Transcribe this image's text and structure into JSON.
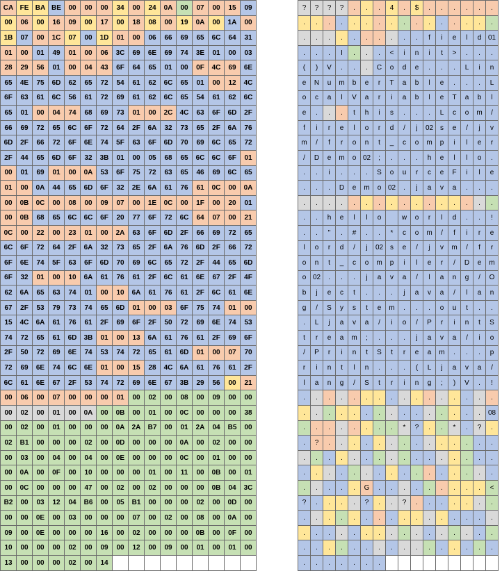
{
  "colors": {
    "o": "#f8cbad",
    "y": "#ffe699",
    "b": "#b4c6e7",
    "g": "#c6e0b4",
    "s": "#d9d9d9",
    "w": "#ffffff"
  },
  "hex_rows": [
    [
      "CA",
      "FE",
      "BA",
      "BE",
      "00",
      "00",
      "00",
      "34",
      "00",
      "24",
      "0A",
      "00",
      "07",
      "00",
      "15",
      "09"
    ],
    [
      "00",
      "06",
      "00",
      "16",
      "09",
      "00",
      "17",
      "00",
      "18",
      "08",
      "00",
      "19",
      "0A",
      "00",
      "1A",
      "00"
    ],
    [
      "1B",
      "07",
      "00",
      "1C",
      "07",
      "00",
      "1D",
      "01",
      "00",
      "06",
      "66",
      "69",
      "65",
      "6C",
      "64",
      "31"
    ],
    [
      "01",
      "00",
      "01",
      "49",
      "01",
      "00",
      "06",
      "3C",
      "69",
      "6E",
      "69",
      "74",
      "3E",
      "01",
      "00",
      "03"
    ],
    [
      "28",
      "29",
      "56",
      "01",
      "00",
      "04",
      "43",
      "6F",
      "64",
      "65",
      "01",
      "00",
      "0F",
      "4C",
      "69",
      "6E"
    ],
    [
      "65",
      "4E",
      "75",
      "6D",
      "62",
      "65",
      "72",
      "54",
      "61",
      "62",
      "6C",
      "65",
      "01",
      "00",
      "12",
      "4C"
    ],
    [
      "6F",
      "63",
      "61",
      "6C",
      "56",
      "61",
      "72",
      "69",
      "61",
      "62",
      "6C",
      "65",
      "54",
      "61",
      "62",
      "6C"
    ],
    [
      "65",
      "01",
      "00",
      "04",
      "74",
      "68",
      "69",
      "73",
      "01",
      "00",
      "2C",
      "4C",
      "63",
      "6F",
      "6D",
      "2F"
    ],
    [
      "66",
      "69",
      "72",
      "65",
      "6C",
      "6F",
      "72",
      "64",
      "2F",
      "6A",
      "32",
      "73",
      "65",
      "2F",
      "6A",
      "76"
    ],
    [
      "6D",
      "2F",
      "66",
      "72",
      "6F",
      "6E",
      "74",
      "5F",
      "63",
      "6F",
      "6D",
      "70",
      "69",
      "6C",
      "65",
      "72"
    ],
    [
      "2F",
      "44",
      "65",
      "6D",
      "6F",
      "32",
      "3B",
      "01",
      "00",
      "05",
      "68",
      "65",
      "6C",
      "6C",
      "6F",
      "01"
    ],
    [
      "00",
      "01",
      "69",
      "01",
      "00",
      "0A",
      "53",
      "6F",
      "75",
      "72",
      "63",
      "65",
      "46",
      "69",
      "6C",
      "65"
    ],
    [
      "01",
      "00",
      "0A",
      "44",
      "65",
      "6D",
      "6F",
      "32",
      "2E",
      "6A",
      "61",
      "76",
      "61",
      "0C",
      "00",
      "0A"
    ],
    [
      "00",
      "0B",
      "0C",
      "00",
      "08",
      "00",
      "09",
      "07",
      "00",
      "1E",
      "0C",
      "00",
      "1F",
      "00",
      "20",
      "01"
    ],
    [
      "00",
      "0B",
      "68",
      "65",
      "6C",
      "6C",
      "6F",
      "20",
      "77",
      "6F",
      "72",
      "6C",
      "64",
      "07",
      "00",
      "21"
    ],
    [
      "0C",
      "00",
      "22",
      "00",
      "23",
      "01",
      "00",
      "2A",
      "63",
      "6F",
      "6D",
      "2F",
      "66",
      "69",
      "72",
      "65"
    ],
    [
      "6C",
      "6F",
      "72",
      "64",
      "2F",
      "6A",
      "32",
      "73",
      "65",
      "2F",
      "6A",
      "76",
      "6D",
      "2F",
      "66",
      "72"
    ],
    [
      "6F",
      "6E",
      "74",
      "5F",
      "63",
      "6F",
      "6D",
      "70",
      "69",
      "6C",
      "65",
      "72",
      "2F",
      "44",
      "65",
      "6D"
    ],
    [
      "6F",
      "32",
      "01",
      "00",
      "10",
      "6A",
      "61",
      "76",
      "61",
      "2F",
      "6C",
      "61",
      "6E",
      "67",
      "2F",
      "4F"
    ],
    [
      "62",
      "6A",
      "65",
      "63",
      "74",
      "01",
      "00",
      "10",
      "6A",
      "61",
      "76",
      "61",
      "2F",
      "6C",
      "61",
      "6E"
    ],
    [
      "67",
      "2F",
      "53",
      "79",
      "73",
      "74",
      "65",
      "6D",
      "01",
      "00",
      "03",
      "6F",
      "75",
      "74",
      "01",
      "00"
    ],
    [
      "15",
      "4C",
      "6A",
      "61",
      "76",
      "61",
      "2F",
      "69",
      "6F",
      "2F",
      "50",
      "72",
      "69",
      "6E",
      "74",
      "53"
    ],
    [
      "74",
      "72",
      "65",
      "61",
      "6D",
      "3B",
      "01",
      "00",
      "13",
      "6A",
      "61",
      "76",
      "61",
      "2F",
      "69",
      "6F"
    ],
    [
      "2F",
      "50",
      "72",
      "69",
      "6E",
      "74",
      "53",
      "74",
      "72",
      "65",
      "61",
      "6D",
      "01",
      "00",
      "07",
      "70"
    ],
    [
      "72",
      "69",
      "6E",
      "74",
      "6C",
      "6E",
      "01",
      "00",
      "15",
      "28",
      "4C",
      "6A",
      "61",
      "76",
      "61",
      "2F"
    ],
    [
      "6C",
      "61",
      "6E",
      "67",
      "2F",
      "53",
      "74",
      "72",
      "69",
      "6E",
      "67",
      "3B",
      "29",
      "56",
      "00",
      "21"
    ],
    [
      "00",
      "06",
      "00",
      "07",
      "00",
      "00",
      "00",
      "01",
      "00",
      "02",
      "00",
      "08",
      "00",
      "09",
      "00",
      "00"
    ],
    [
      "00",
      "02",
      "00",
      "01",
      "00",
      "0A",
      "00",
      "0B",
      "00",
      "01",
      "00",
      "0C",
      "00",
      "00",
      "00",
      "38"
    ],
    [
      "00",
      "02",
      "00",
      "01",
      "00",
      "00",
      "00",
      "0A",
      "2A",
      "B7",
      "00",
      "01",
      "2A",
      "04",
      "B5",
      "00"
    ],
    [
      "02",
      "B1",
      "00",
      "00",
      "00",
      "02",
      "00",
      "0D",
      "00",
      "00",
      "00",
      "0A",
      "00",
      "02",
      "00",
      "00"
    ],
    [
      "00",
      "03",
      "00",
      "04",
      "00",
      "04",
      "00",
      "0E",
      "00",
      "00",
      "00",
      "0C",
      "00",
      "01",
      "00",
      "00"
    ],
    [
      "00",
      "0A",
      "00",
      "0F",
      "00",
      "10",
      "00",
      "00",
      "00",
      "01",
      "00",
      "11",
      "00",
      "0B",
      "00",
      "01"
    ],
    [
      "00",
      "0C",
      "00",
      "00",
      "00",
      "47",
      "00",
      "02",
      "00",
      "02",
      "00",
      "00",
      "00",
      "0B",
      "04",
      "3C"
    ],
    [
      "B2",
      "00",
      "03",
      "12",
      "04",
      "B6",
      "00",
      "05",
      "B1",
      "00",
      "00",
      "00",
      "02",
      "00",
      "0D",
      "00"
    ],
    [
      "00",
      "00",
      "0E",
      "00",
      "03",
      "00",
      "00",
      "00",
      "07",
      "00",
      "02",
      "00",
      "08",
      "00",
      "0A",
      "00"
    ],
    [
      "09",
      "00",
      "0E",
      "00",
      "00",
      "00",
      "16",
      "00",
      "02",
      "00",
      "00",
      "00",
      "0B",
      "00",
      "0F",
      "00"
    ],
    [
      "10",
      "00",
      "00",
      "00",
      "02",
      "00",
      "09",
      "00",
      "12",
      "00",
      "09",
      "00",
      "01",
      "00",
      "01",
      "00"
    ],
    [
      "13",
      "00",
      "00",
      "00",
      "02",
      "00",
      "14",
      "",
      "",
      "",
      "",
      "",
      "",
      "",
      "",
      ""
    ]
  ],
  "hex_colors": [
    "oyyboooyoyogooob",
    "yoyooyoyoyoyoybo",
    "ybooybyoobbbbbbb",
    "oobbooobbbbbbbbb",
    "ooobooobbbbbooob",
    "bbbbbbbbbbbbboob",
    "bbbbbbbbbbbbbbbb",
    "bbooobbbooobbbbb",
    "bbbbbbbbbbbbbbbb",
    "bbbbbbbbbbbbbbbb",
    "bbbbbbbbbbbbbbbo",
    "obbooobbbbbbbbbb",
    "oobbbbbbbbbboooo",
    "ooooooooooooooob",
    "oobbbbbbbbbboooo",
    "oooooooobbbbbbbb",
    "bbbbbbbbbbbbbbbb",
    "bbbbbbbbbbbbbbbb",
    "bbooobbbbbbbbbbb",
    "bbbbbboobbbbbbbb",
    "bbbbbbbbooobbboo",
    "bbbbbbbbbbbbbbbb",
    "bbbbbbooobbbbbbb",
    "bbbbbbbbbbbbooob",
    "bbbbbbooobbbbbbb",
    "bbbbbbbbbbbbbbyo",
    "oooooooogggggggg",
    "ssssssgggggggggg",
    "gggggggggggggggg",
    "gggggggggggggggg",
    "gggggggggggggggg",
    "gggggggggggggggg",
    "gggggggggggggggg",
    "gggggggggggggggg",
    "gggggggggggggggg",
    "gggggggggggggggg",
    "gggggggggggggggg",
    "ggggggg000000000"
  ],
  "ascii_rows": [
    [
      "?",
      "?",
      "?",
      "?",
      ".",
      ".",
      ".",
      "4",
      ".",
      "$",
      ".",
      ".",
      ".",
      ".",
      ".",
      "."
    ],
    [
      ".",
      ".",
      ".",
      ".",
      ".",
      ".",
      ".",
      ".",
      ".",
      ".",
      ".",
      ".",
      ".",
      ".",
      ".",
      "."
    ],
    [
      ".",
      ".",
      ".",
      ".",
      ".",
      ".",
      ".",
      ".",
      ".",
      ".",
      "f",
      "i",
      "e",
      "l",
      "d",
      "01"
    ],
    [
      ".",
      ".",
      ".",
      "I",
      ".",
      ".",
      ".",
      "<",
      "i",
      "n",
      "i",
      "t",
      ">",
      ".",
      ".",
      "."
    ],
    [
      "(",
      ")",
      "V",
      ".",
      ".",
      ".",
      "C",
      "o",
      "d",
      "e",
      ".",
      ".",
      ".",
      "L",
      "i",
      "n"
    ],
    [
      "e",
      "N",
      "u",
      "m",
      "b",
      "e",
      "r",
      "T",
      "a",
      "b",
      "l",
      "e",
      ".",
      ".",
      ".",
      "L"
    ],
    [
      "o",
      "c",
      "a",
      "l",
      "V",
      "a",
      "r",
      "i",
      "a",
      "b",
      "l",
      "e",
      "T",
      "a",
      "b",
      "l"
    ],
    [
      "e",
      ".",
      ".",
      ".",
      "t",
      "h",
      "i",
      "s",
      ".",
      ".",
      ".",
      "L",
      "c",
      "o",
      "m",
      "/"
    ],
    [
      "f",
      "i",
      "r",
      "e",
      "l",
      "o",
      "r",
      "d",
      "/",
      "j",
      "02",
      "s",
      "e",
      "/",
      "j",
      "v"
    ],
    [
      "m",
      "/",
      "f",
      "r",
      "o",
      "n",
      "t",
      "_",
      "c",
      "o",
      "m",
      "p",
      "i",
      "l",
      "e",
      "r"
    ],
    [
      "/",
      "D",
      "e",
      "m",
      "o",
      "02",
      ";",
      ".",
      ".",
      ".",
      "h",
      "e",
      "l",
      "l",
      "o",
      "."
    ],
    [
      ".",
      ".",
      "i",
      ".",
      ".",
      ".",
      "S",
      "o",
      "u",
      "r",
      "c",
      "e",
      "F",
      "i",
      "l",
      "e"
    ],
    [
      ".",
      ".",
      ".",
      "D",
      "e",
      "m",
      "o",
      "02",
      ".",
      "j",
      "a",
      "v",
      "a",
      ".",
      ".",
      "."
    ],
    [
      ".",
      ".",
      ".",
      ".",
      ".",
      ".",
      ".",
      ".",
      ".",
      ".",
      ".",
      ".",
      ".",
      ".",
      ".",
      "."
    ],
    [
      ".",
      ".",
      "h",
      "e",
      "l",
      "l",
      "o",
      " ",
      "w",
      "o",
      "r",
      "l",
      "d",
      ".",
      ".",
      "!"
    ],
    [
      ".",
      ".",
      "\"",
      ".",
      "#",
      ".",
      ".",
      "*",
      "c",
      "o",
      "m",
      "/",
      "f",
      "i",
      "r",
      "e"
    ],
    [
      "l",
      "o",
      "r",
      "d",
      "/",
      "j",
      "02",
      "s",
      "e",
      "/",
      "j",
      "v",
      "m",
      "/",
      "f",
      "r"
    ],
    [
      "o",
      "n",
      "t",
      "_",
      "c",
      "o",
      "m",
      "p",
      "i",
      "l",
      "e",
      "r",
      "/",
      "D",
      "e",
      "m"
    ],
    [
      "o",
      "02",
      ".",
      ".",
      ".",
      "j",
      "a",
      "v",
      "a",
      "/",
      "l",
      "a",
      "n",
      "g",
      "/",
      "O"
    ],
    [
      "b",
      "j",
      "e",
      "c",
      "t",
      ".",
      ".",
      ".",
      "j",
      "a",
      "v",
      "a",
      "/",
      "l",
      "a",
      "n"
    ],
    [
      "g",
      "/",
      "S",
      "y",
      "s",
      "t",
      "e",
      "m",
      ".",
      ".",
      ".",
      "o",
      "u",
      "t",
      ".",
      "."
    ],
    [
      ".",
      "L",
      "j",
      "a",
      "v",
      "a",
      "/",
      "i",
      "o",
      "/",
      "P",
      "r",
      "i",
      "n",
      "t",
      "S"
    ],
    [
      "t",
      "r",
      "e",
      "a",
      "m",
      ";",
      ".",
      ".",
      ".",
      "j",
      "a",
      "v",
      "a",
      "/",
      "i",
      "o"
    ],
    [
      "/",
      "P",
      "r",
      "i",
      "n",
      "t",
      "S",
      "t",
      "r",
      "e",
      "a",
      "m",
      ".",
      ".",
      ".",
      "p"
    ],
    [
      "r",
      "i",
      "n",
      "t",
      "l",
      "n",
      ".",
      ".",
      ".",
      "(",
      "L",
      "j",
      "a",
      "v",
      "a",
      "/"
    ],
    [
      "l",
      "a",
      "n",
      "g",
      "/",
      "S",
      "t",
      "r",
      "i",
      "n",
      "g",
      ";",
      ")",
      "V",
      ".",
      "!"
    ],
    [
      ".",
      ".",
      ".",
      ".",
      ".",
      ".",
      ".",
      ".",
      ".",
      ".",
      ".",
      ".",
      ".",
      ".",
      ".",
      "."
    ],
    [
      ".",
      ".",
      ".",
      ".",
      ".",
      ".",
      ".",
      ".",
      ".",
      ".",
      ".",
      ".",
      ".",
      ".",
      ".",
      "08"
    ],
    [
      ".",
      ".",
      ".",
      ".",
      ".",
      ".",
      ".",
      ".",
      "*",
      "?",
      ".",
      ".",
      "*",
      ".",
      "?",
      "."
    ],
    [
      ".",
      "?",
      ".",
      ".",
      ".",
      ".",
      ".",
      ".",
      ".",
      ".",
      ".",
      ".",
      ".",
      ".",
      ".",
      "."
    ],
    [
      ".",
      ".",
      ".",
      ".",
      ".",
      ".",
      ".",
      ".",
      ".",
      ".",
      ".",
      ".",
      ".",
      ".",
      ".",
      "."
    ],
    [
      ".",
      ".",
      ".",
      ".",
      ".",
      ".",
      ".",
      ".",
      ".",
      ".",
      ".",
      ".",
      ".",
      ".",
      ".",
      "."
    ],
    [
      ".",
      ".",
      ".",
      ".",
      ".",
      "G",
      ".",
      ".",
      ".",
      ".",
      ".",
      ".",
      ".",
      ".",
      ".",
      "<"
    ],
    [
      "?",
      ".",
      ".",
      ".",
      ".",
      "?",
      ".",
      ".",
      "?",
      ".",
      ".",
      ".",
      ".",
      ".",
      ".",
      "."
    ],
    [
      ".",
      ".",
      ".",
      ".",
      ".",
      ".",
      ".",
      ".",
      ".",
      ".",
      ".",
      ".",
      ".",
      ".",
      ".",
      "."
    ],
    [
      ".",
      ".",
      ".",
      ".",
      ".",
      ".",
      ".",
      ".",
      ".",
      ".",
      ".",
      ".",
      ".",
      ".",
      ".",
      "."
    ],
    [
      ".",
      ".",
      ".",
      ".",
      ".",
      ".",
      ".",
      ".",
      ".",
      ".",
      ".",
      ".",
      ".",
      ".",
      ".",
      "."
    ],
    [
      ".",
      ".",
      ".",
      ".",
      ".",
      ".",
      ".",
      "",
      "",
      "",
      "",
      "",
      "",
      "",
      "",
      ""
    ]
  ],
  "ascii_colors": [
    "ssssoyoyoyoooooo",
    "yyobyyoygoyboyyg",
    "sssyboosbbbbbbbb",
    "bbbbgsbbbbbbbbbb",
    "bbbbbsbbbbbbbbbb",
    "bbbbbbbbbbbbbbbb",
    "bbbbbbbbbbbbbbbb",
    "bbsobbbbbbbbbbbb",
    "bbbbbbbbbbbbbbbb",
    "bbbbbbbbbbbbbbbb",
    "bbbbbbbbbbbbbbbb",
    "bbbbbbbbbbbbbbbb",
    "bbbbbbbbbbbbbbbb",
    "ssssoyoyoyoyyosg",
    "bbbbbbbbbbbbbbbb",
    "bbbbbbbbbbbbbbbb",
    "bbbbbbbbbbbbbbbb",
    "bbbbbbbbbbbbbbbb",
    "bbbbbbbbbbbbbbbb",
    "bbbbbbbbbbbbbbbb",
    "bbbbbbbbbbbbbbbb",
    "bbbbbbbbbbbbbbbb",
    "bbbbbbbbbbbbbbbb",
    "bbbbbbbbbbbbbbbb",
    "bbbbbbbbbbbbbbbb",
    "bbbbbbbbbbbbbbbb",
    "bsosoyybsyosybso",
    "ysgyybgsbbsgybsb",
    "goosoyggsbygsbsy",
    "boosybysgbsyygbb",
    "sgbysbgsgbbsygbb",
    "bysbgsbybgobygsb",
    "gsbbyobbsbgoyyyg",
    "bbyysbyssobbyysg",
    "bsygybobyysybbbs",
    "ybbsbyysgsbsgsbg",
    "bbygbbsbssgbybgb",
    "bbbbbbb000000000"
  ]
}
